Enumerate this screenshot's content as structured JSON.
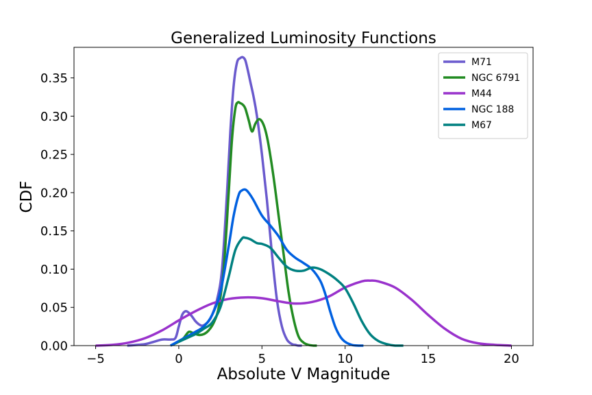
{
  "chart_data": {
    "type": "line",
    "title": "Generalized Luminosity Functions",
    "xlabel": "Absolute V Magnitude",
    "ylabel": "CDF",
    "xlim": [
      -6.3,
      21.3
    ],
    "ylim": [
      0,
      0.39
    ],
    "xticks": [
      -5,
      0,
      5,
      10,
      15,
      20
    ],
    "xtick_labels": [
      "−5",
      "0",
      "5",
      "10",
      "15",
      "20"
    ],
    "yticks": [
      0,
      0.05,
      0.1,
      0.15,
      0.2,
      0.25,
      0.3,
      0.35
    ],
    "ytick_labels": [
      "0.00",
      "0.05",
      "0.10",
      "0.15",
      "0.20",
      "0.25",
      "0.30",
      "0.35"
    ],
    "grid": false,
    "legend_position": "top-right",
    "series": [
      {
        "name": "M71",
        "color": "#6a5acd",
        "x": [
          -3.1,
          -2.5,
          -2.0,
          -1.5,
          -1.0,
          -0.5,
          -0.2,
          0.0,
          0.2,
          0.4,
          0.6,
          0.8,
          1.0,
          1.2,
          1.4,
          1.6,
          1.8,
          2.0,
          2.3,
          2.6,
          2.9,
          3.1,
          3.3,
          3.5,
          3.7,
          3.85,
          4.0,
          4.15,
          4.3,
          4.5,
          4.7,
          5.0,
          5.3,
          5.6,
          5.9,
          6.2,
          6.5,
          6.8,
          7.0,
          7.2,
          7.4
        ],
        "y": [
          0.0,
          0.001,
          0.002,
          0.005,
          0.008,
          0.008,
          0.01,
          0.025,
          0.04,
          0.045,
          0.043,
          0.038,
          0.032,
          0.028,
          0.026,
          0.028,
          0.032,
          0.04,
          0.06,
          0.1,
          0.2,
          0.28,
          0.34,
          0.37,
          0.376,
          0.377,
          0.373,
          0.36,
          0.345,
          0.325,
          0.3,
          0.25,
          0.19,
          0.12,
          0.06,
          0.025,
          0.008,
          0.002,
          0.001,
          0.0,
          0.0
        ]
      },
      {
        "name": "NGC 6791",
        "color": "#228b22",
        "x": [
          -0.5,
          0.0,
          0.3,
          0.6,
          0.9,
          1.2,
          1.5,
          1.8,
          2.1,
          2.4,
          2.7,
          3.0,
          3.2,
          3.4,
          3.55,
          3.7,
          3.85,
          4.0,
          4.2,
          4.4,
          4.6,
          4.8,
          5.0,
          5.2,
          5.4,
          5.7,
          6.0,
          6.3,
          6.6,
          6.9,
          7.2,
          7.5,
          7.8,
          8.1,
          8.3
        ],
        "y": [
          0.0,
          0.005,
          0.01,
          0.018,
          0.016,
          0.014,
          0.015,
          0.02,
          0.03,
          0.05,
          0.1,
          0.2,
          0.27,
          0.31,
          0.318,
          0.317,
          0.315,
          0.31,
          0.295,
          0.28,
          0.29,
          0.296,
          0.293,
          0.282,
          0.262,
          0.22,
          0.17,
          0.12,
          0.07,
          0.035,
          0.012,
          0.004,
          0.001,
          0.0,
          0.0
        ]
      },
      {
        "name": "M44",
        "color": "#9932cc",
        "x": [
          -5.0,
          -4.0,
          -3.0,
          -2.0,
          -1.0,
          0.0,
          1.0,
          2.0,
          3.0,
          4.0,
          5.0,
          6.0,
          7.0,
          8.0,
          9.0,
          10.0,
          11.0,
          11.5,
          12.0,
          13.0,
          14.0,
          15.0,
          16.0,
          17.0,
          18.0,
          19.0,
          20.0
        ],
        "y": [
          0.0,
          0.001,
          0.004,
          0.01,
          0.02,
          0.033,
          0.045,
          0.055,
          0.061,
          0.063,
          0.062,
          0.058,
          0.055,
          0.057,
          0.064,
          0.076,
          0.084,
          0.085,
          0.084,
          0.076,
          0.06,
          0.04,
          0.022,
          0.009,
          0.003,
          0.001,
          0.0
        ]
      },
      {
        "name": "NGC 188",
        "color": "#0060e0",
        "x": [
          -0.5,
          0.0,
          0.5,
          1.0,
          1.5,
          2.0,
          2.5,
          3.0,
          3.3,
          3.6,
          3.8,
          4.0,
          4.2,
          4.5,
          5.0,
          5.5,
          6.0,
          6.5,
          7.0,
          7.5,
          8.0,
          8.5,
          8.8,
          9.1,
          9.4,
          9.7,
          10.0,
          10.4,
          10.8,
          11.1
        ],
        "y": [
          0.0,
          0.006,
          0.012,
          0.018,
          0.025,
          0.04,
          0.07,
          0.13,
          0.17,
          0.197,
          0.203,
          0.204,
          0.2,
          0.19,
          0.17,
          0.157,
          0.143,
          0.125,
          0.115,
          0.108,
          0.1,
          0.085,
          0.068,
          0.045,
          0.025,
          0.012,
          0.005,
          0.001,
          0.0,
          0.0
        ]
      },
      {
        "name": "M67",
        "color": "#008080",
        "x": [
          0.0,
          0.5,
          1.0,
          1.5,
          2.0,
          2.5,
          3.0,
          3.4,
          3.8,
          4.0,
          4.3,
          4.7,
          5.0,
          5.5,
          6.0,
          6.5,
          7.0,
          7.5,
          8.0,
          8.5,
          9.0,
          9.5,
          10.0,
          10.5,
          11.0,
          11.5,
          12.0,
          12.5,
          13.0,
          13.5
        ],
        "y": [
          0.005,
          0.01,
          0.015,
          0.022,
          0.03,
          0.05,
          0.09,
          0.125,
          0.14,
          0.141,
          0.139,
          0.134,
          0.133,
          0.128,
          0.115,
          0.103,
          0.098,
          0.098,
          0.102,
          0.1,
          0.094,
          0.086,
          0.075,
          0.055,
          0.032,
          0.015,
          0.006,
          0.002,
          0.0,
          0.0
        ]
      }
    ]
  }
}
